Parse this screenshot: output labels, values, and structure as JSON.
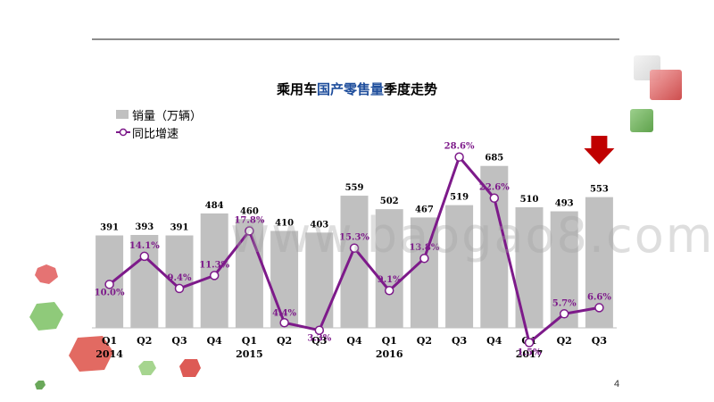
{
  "slide": {
    "title_prefix": "乘用车",
    "title_highlight": "国产零售量",
    "title_suffix": "季度走势",
    "page_number": "4",
    "watermark": "www.baogao8.com"
  },
  "colors": {
    "bar": "#c0c0c0",
    "line": "#7d1a8a",
    "arrow": "#c00000",
    "title_highlight": "#1f4e9c"
  },
  "chart_data": {
    "type": "bar+line",
    "title": "乘用车国产零售量季度走势",
    "categories": [
      "Q1",
      "Q2",
      "Q3",
      "Q4",
      "Q1",
      "Q2",
      "Q3",
      "Q4",
      "Q1",
      "Q2",
      "Q3",
      "Q4",
      "Q1",
      "Q2",
      "Q3"
    ],
    "years": [
      {
        "label": "2014",
        "index": 0
      },
      {
        "label": "2015",
        "index": 4
      },
      {
        "label": "2016",
        "index": 8
      },
      {
        "label": "2017",
        "index": 12
      }
    ],
    "series": [
      {
        "name": "销量（万辆）",
        "type": "bar",
        "values": [
          391,
          393,
          391,
          484,
          460,
          410,
          403,
          559,
          502,
          467,
          519,
          685,
          510,
          493,
          553
        ],
        "labels": [
          "391",
          "393",
          "391",
          "484",
          "460",
          "410",
          "403",
          "559",
          "502",
          "467",
          "519",
          "685",
          "510",
          "493",
          "553"
        ]
      },
      {
        "name": "同比增速",
        "type": "line",
        "values": [
          10.0,
          14.1,
          9.4,
          11.3,
          17.8,
          4.4,
          3.3,
          15.3,
          9.1,
          13.8,
          28.6,
          22.6,
          1.5,
          5.7,
          6.6
        ],
        "labels": [
          "10.0%",
          "14.1%",
          "9.4%",
          "11.3%",
          "17.8%",
          "4.4%",
          "3.3%",
          "15.3%",
          "9.1%",
          "13.8%",
          "28.6%",
          "22.6%",
          "1.5%",
          "5.7%",
          "6.6%"
        ]
      }
    ],
    "bar_ylim": [
      0,
      820
    ],
    "line_ylim": [
      0,
      30
    ],
    "legend_position": "top-left",
    "annotation": "down-arrow above last bar"
  }
}
